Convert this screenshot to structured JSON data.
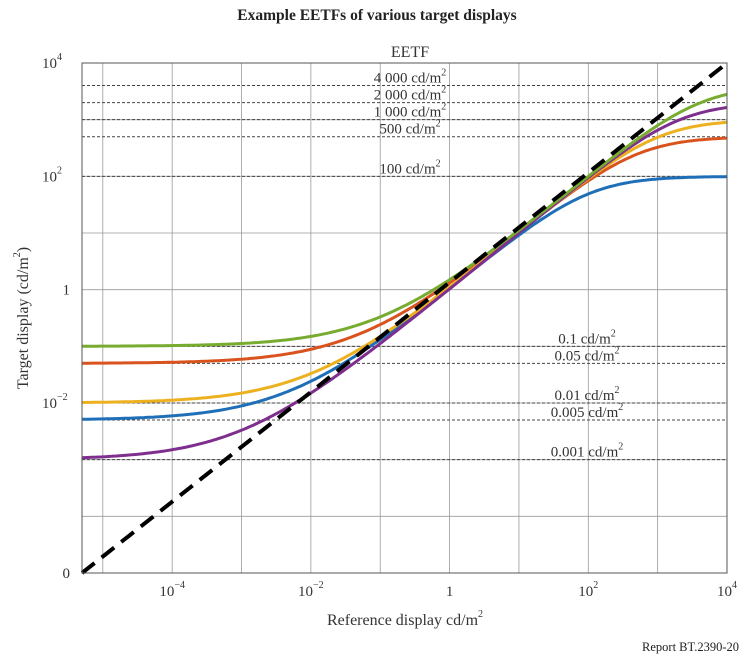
{
  "title": "Example EETFs of various target displays",
  "footer": "Report BT.2390-20",
  "chart_data": {
    "type": "line",
    "title": "Example EETFs of various target displays",
    "subtitle": "EETF",
    "xlabel_main": "Reference display cd/m",
    "xlabel_sup": "2",
    "ylabel_main": "Target display (cd/m",
    "ylabel_sup": "2",
    "ylabel_end": ")",
    "x_scale": "log",
    "y_scale": "log-ish (with zero at bottom)",
    "xlim_log10": [
      -5.3,
      4
    ],
    "ylim_log10": [
      -5,
      4
    ],
    "x_ticks": [
      {
        "base": "10",
        "exp": "−4",
        "log": -4
      },
      {
        "base": "10",
        "exp": "−2",
        "log": -2
      },
      {
        "base": "1",
        "exp": "",
        "log": 0
      },
      {
        "base": "10",
        "exp": "2",
        "log": 2
      },
      {
        "base": "10",
        "exp": "4",
        "log": 4
      }
    ],
    "y_ticks": [
      {
        "base": "10",
        "exp": "4",
        "log": 4
      },
      {
        "base": "10",
        "exp": "2",
        "log": 2
      },
      {
        "base": "1",
        "exp": "",
        "log": 0
      },
      {
        "base": "10",
        "exp": "−2",
        "log": -2
      },
      {
        "base": "0",
        "exp": "",
        "log": -5
      }
    ],
    "reference_lines": [
      {
        "value": 4000,
        "label": "4 000 cd/m",
        "sup": "2"
      },
      {
        "value": 2000,
        "label": "2 000 cd/m",
        "sup": "2"
      },
      {
        "value": 1000,
        "label": "1 000 cd/m",
        "sup": "2"
      },
      {
        "value": 500,
        "label": "500 cd/m",
        "sup": "2"
      },
      {
        "value": 100,
        "label": "100 cd/m",
        "sup": "2"
      },
      {
        "value": 0.1,
        "label": "0.1     cd/m",
        "sup": "2"
      },
      {
        "value": 0.05,
        "label": "0.05    cd/m",
        "sup": "2"
      },
      {
        "value": 0.01,
        "label": "0.01    cd/m",
        "sup": "2"
      },
      {
        "value": 0.005,
        "label": "0.005  cd/m",
        "sup": "2"
      },
      {
        "value": 0.001,
        "label": "0.001   cd/m",
        "sup": "2"
      }
    ],
    "identity_line": {
      "name": "identity",
      "style": "dashed",
      "color": "#000000"
    },
    "series": [
      {
        "name": "100 cd/m2 / 0.005 cd/m2",
        "min": 0.005,
        "max": 100,
        "color": "#1f6fb8"
      },
      {
        "name": "500 cd/m2 / 0.05 cd/m2",
        "min": 0.05,
        "max": 500,
        "color": "#d9531e"
      },
      {
        "name": "1000 cd/m2 / 0.01 cd/m2",
        "min": 0.01,
        "max": 1000,
        "color": "#edb120"
      },
      {
        "name": "2000 cd/m2 / 0.001 cd/m2",
        "min": 0.001,
        "max": 2000,
        "color": "#7e2f8e"
      },
      {
        "name": "4000 cd/m2 / 0.1 cd/m2",
        "min": 0.1,
        "max": 4000,
        "color": "#77ac30"
      }
    ]
  }
}
